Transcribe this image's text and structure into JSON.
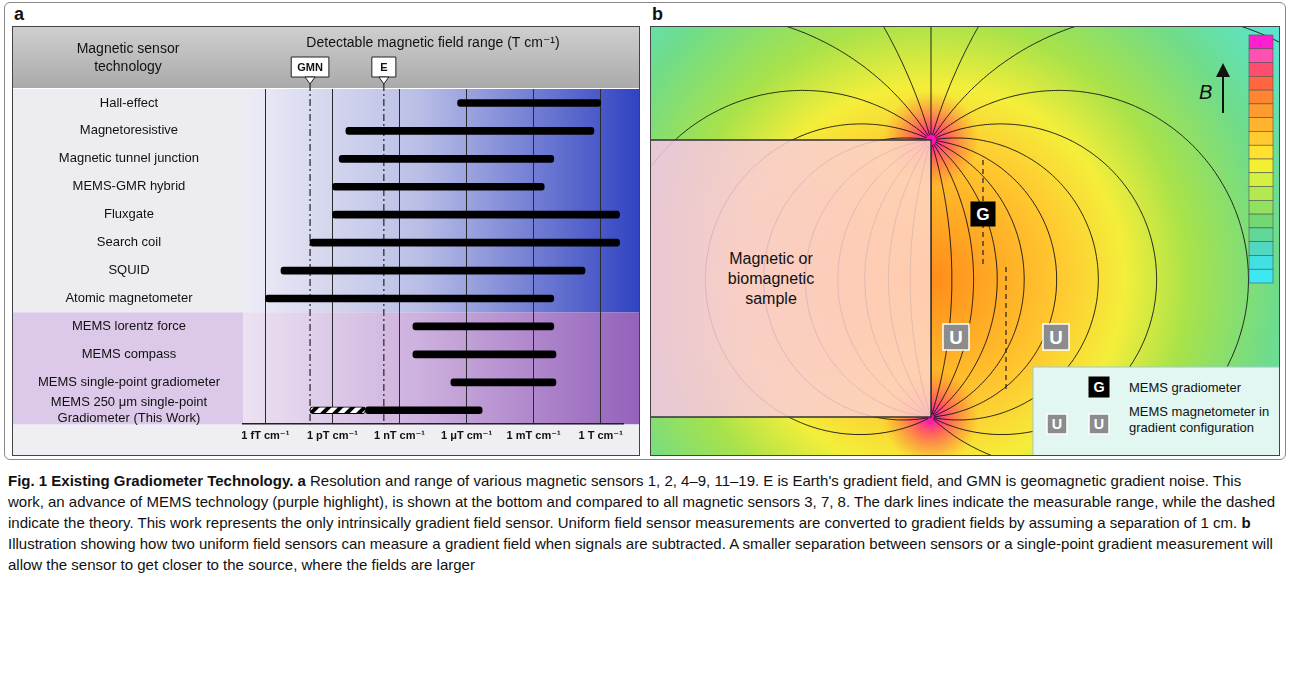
{
  "chart_data": {
    "type": "bar",
    "panel": "a",
    "orientation": "horizontal",
    "log": "x",
    "grid": true,
    "xlabel": "Detectable magnetic field range (T cm⁻¹)",
    "ylabel": "Magnetic sensor technology",
    "categories": [
      "Hall-effect",
      "Magnetoresistive",
      "Magnetic tunnel junction",
      "MEMS-GMR hybrid",
      "Fluxgate",
      "Search coil",
      "SQUID",
      "Atomic magnetometer",
      "MEMS lorentz force",
      "MEMS compass",
      "MEMS single-point gradiometer",
      "MEMS 250 μm single-point Gradiometer (This Work)"
    ],
    "series": [
      {
        "color": "#000000",
        "line_style": "solid",
        "values": [
          [
            4e-07,
            1
          ],
          [
            4e-12,
            0.5
          ],
          [
            2e-12,
            0.008
          ],
          [
            1e-12,
            0.003
          ],
          [
            1e-12,
            7
          ],
          [
            1e-13,
            7
          ],
          [
            5e-15,
            0.2
          ],
          [
            1e-15,
            0.008
          ],
          [
            4e-09,
            0.008
          ],
          [
            4e-09,
            0.01
          ],
          [
            2e-07,
            0.01
          ],
          [
            3e-11,
            5e-06
          ]
        ]
      },
      {
        "color": "#000000",
        "line_style": "dashed",
        "values": [
          null,
          null,
          null,
          null,
          null,
          null,
          null,
          null,
          null,
          null,
          null,
          [
            1e-13,
            3e-11
          ]
        ]
      }
    ],
    "xlim": [
      1e-16,
      10
    ],
    "xticks": [
      {
        "value": 1e-15,
        "label": "1 fT cm⁻¹"
      },
      {
        "value": 1e-12,
        "label": "1 pT cm⁻¹"
      },
      {
        "value": 1e-09,
        "label": "1 nT cm⁻¹"
      },
      {
        "value": 1e-06,
        "label": "1 μT cm⁻¹"
      },
      {
        "value": 0.001,
        "label": "1 mT cm⁻¹"
      },
      {
        "value": 1,
        "label": "1 T cm⁻¹"
      }
    ],
    "annotations": [
      {
        "label": "GMN",
        "x": 1e-13
      },
      {
        "label": "E",
        "x": 2e-10
      }
    ]
  },
  "diagram": {
    "panel": "b",
    "sample_label": "Magnetic or biomagnetic sample",
    "field_label": "B",
    "gradiometer_marker": "G",
    "magnetometer_marker": "U",
    "key_entries": [
      {
        "marker": "G",
        "label": "MEMS gradiometer"
      },
      {
        "marker": "U",
        "label": "MEMS magnetometer in gradient configuration"
      }
    ]
  },
  "caption": {
    "label": "Fig. 1 Existing Gradiometer Technology.",
    "parts": [
      {
        "panel": "a",
        "text": "Resolution and range of various magnetic sensors 1, 2, 4–9, 11–19. E is Earth's gradient field, and GMN is geomagnetic gradient noise. This work, an advance of MEMS technology (purple highlight), is shown at the bottom and compared to all magnetic sensors 3, 7, 8. The dark lines indicate the measurable range, while the dashed indicate the theory. This work represents the only intrinsically gradient field sensor. Uniform field sensor measurements are converted to gradient fields by assuming a separation of 1 cm."
      },
      {
        "panel": "b",
        "text": "Illustration showing how two uniform field sensors can measure a gradient field when signals are subtracted. A smaller separation between sensors or a single-point gradient measurement will allow the sensor to get closer to the source, where the fields are larger"
      }
    ]
  }
}
